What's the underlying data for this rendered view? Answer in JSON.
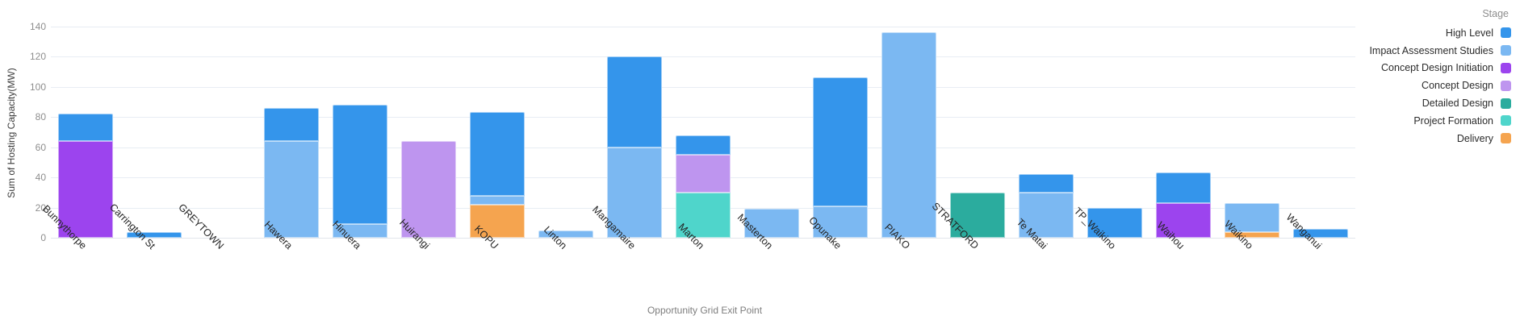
{
  "y_axis_title": "Sum of Hosting Capacity(MW)",
  "x_axis_title": "Opportunity Grid Exit Point",
  "legend": {
    "title": "Stage",
    "position": "top-right",
    "items": [
      "High Level",
      "Impact Assessment Studies",
      "Concept Design Initiation",
      "Concept Design",
      "Detailed Design",
      "Project Formation",
      "Delivery"
    ]
  },
  "colors": {
    "high_level": "#3495EB",
    "impact_assessment_studies": "#7BB8F2",
    "concept_design_initiation": "#9C44EE",
    "concept_design": "#BE95EF",
    "detailed_design": "#2BAC9E",
    "project_formation": "#4FD5CB",
    "delivery": "#F5A44F",
    "gridline": "#e8edf4",
    "tick_text": "#8e8e8e",
    "category_text": "#252525"
  },
  "chart_data": {
    "type": "bar",
    "stacked": true,
    "title": "",
    "xlabel": "Opportunity Grid Exit Point",
    "ylabel": "Sum of Hosting Capacity(MW)",
    "ylim": [
      0,
      140
    ],
    "yticks": [
      0,
      20,
      40,
      60,
      80,
      100,
      120,
      140
    ],
    "grid": true,
    "legend_title": "Stage",
    "legend_position": "right-top",
    "categories": [
      "Bunnythorpe",
      "Carrington St",
      "GREYTOWN",
      "Hawera",
      "Hinuera",
      "Huirangi",
      "KOPU",
      "Linton",
      "Mangamaire",
      "Marton",
      "Masterton",
      "Opunake",
      "PIAKO",
      "STRATFORD",
      "Te Matai",
      "TP_Waikino",
      "Waihou",
      "Waikino",
      "Wanganui"
    ],
    "stack_order_bottom_to_top": [
      "Delivery",
      "Project Formation",
      "Detailed Design",
      "Concept Design",
      "Concept Design Initiation",
      "Impact Assessment Studies",
      "High Level"
    ],
    "series": [
      {
        "name": "High Level",
        "color": "#3495EB",
        "values": [
          18,
          4,
          0,
          22,
          79,
          0,
          55,
          0,
          60,
          13,
          0,
          85,
          0,
          0,
          12,
          20,
          20,
          0,
          6
        ]
      },
      {
        "name": "Impact Assessment Studies",
        "color": "#7BB8F2",
        "values": [
          0,
          0,
          0,
          64,
          9,
          0,
          6,
          5,
          60,
          0,
          19,
          21,
          136,
          0,
          30,
          0,
          0,
          19,
          0
        ]
      },
      {
        "name": "Concept Design Initiation",
        "color": "#9C44EE",
        "values": [
          64,
          0,
          0,
          0,
          0,
          0,
          0,
          0,
          0,
          0,
          0,
          0,
          0,
          0,
          0,
          0,
          23,
          0,
          0
        ]
      },
      {
        "name": "Concept Design",
        "color": "#BE95EF",
        "values": [
          0,
          0,
          0,
          0,
          0,
          64,
          0,
          0,
          0,
          25,
          0,
          0,
          0,
          0,
          0,
          0,
          0,
          0,
          0
        ]
      },
      {
        "name": "Detailed Design",
        "color": "#2BAC9E",
        "values": [
          0,
          0,
          0,
          0,
          0,
          0,
          0,
          0,
          0,
          0,
          0,
          0,
          0,
          30,
          0,
          0,
          0,
          0,
          0
        ]
      },
      {
        "name": "Project Formation",
        "color": "#4FD5CB",
        "values": [
          0,
          0,
          0,
          0,
          0,
          0,
          0,
          0,
          0,
          30,
          0,
          0,
          0,
          0,
          0,
          0,
          0,
          0,
          0
        ]
      },
      {
        "name": "Delivery",
        "color": "#F5A44F",
        "values": [
          0,
          0,
          0,
          0,
          0,
          0,
          22,
          0,
          0,
          0,
          0,
          0,
          0,
          0,
          0,
          0,
          0,
          4,
          0
        ]
      }
    ]
  }
}
